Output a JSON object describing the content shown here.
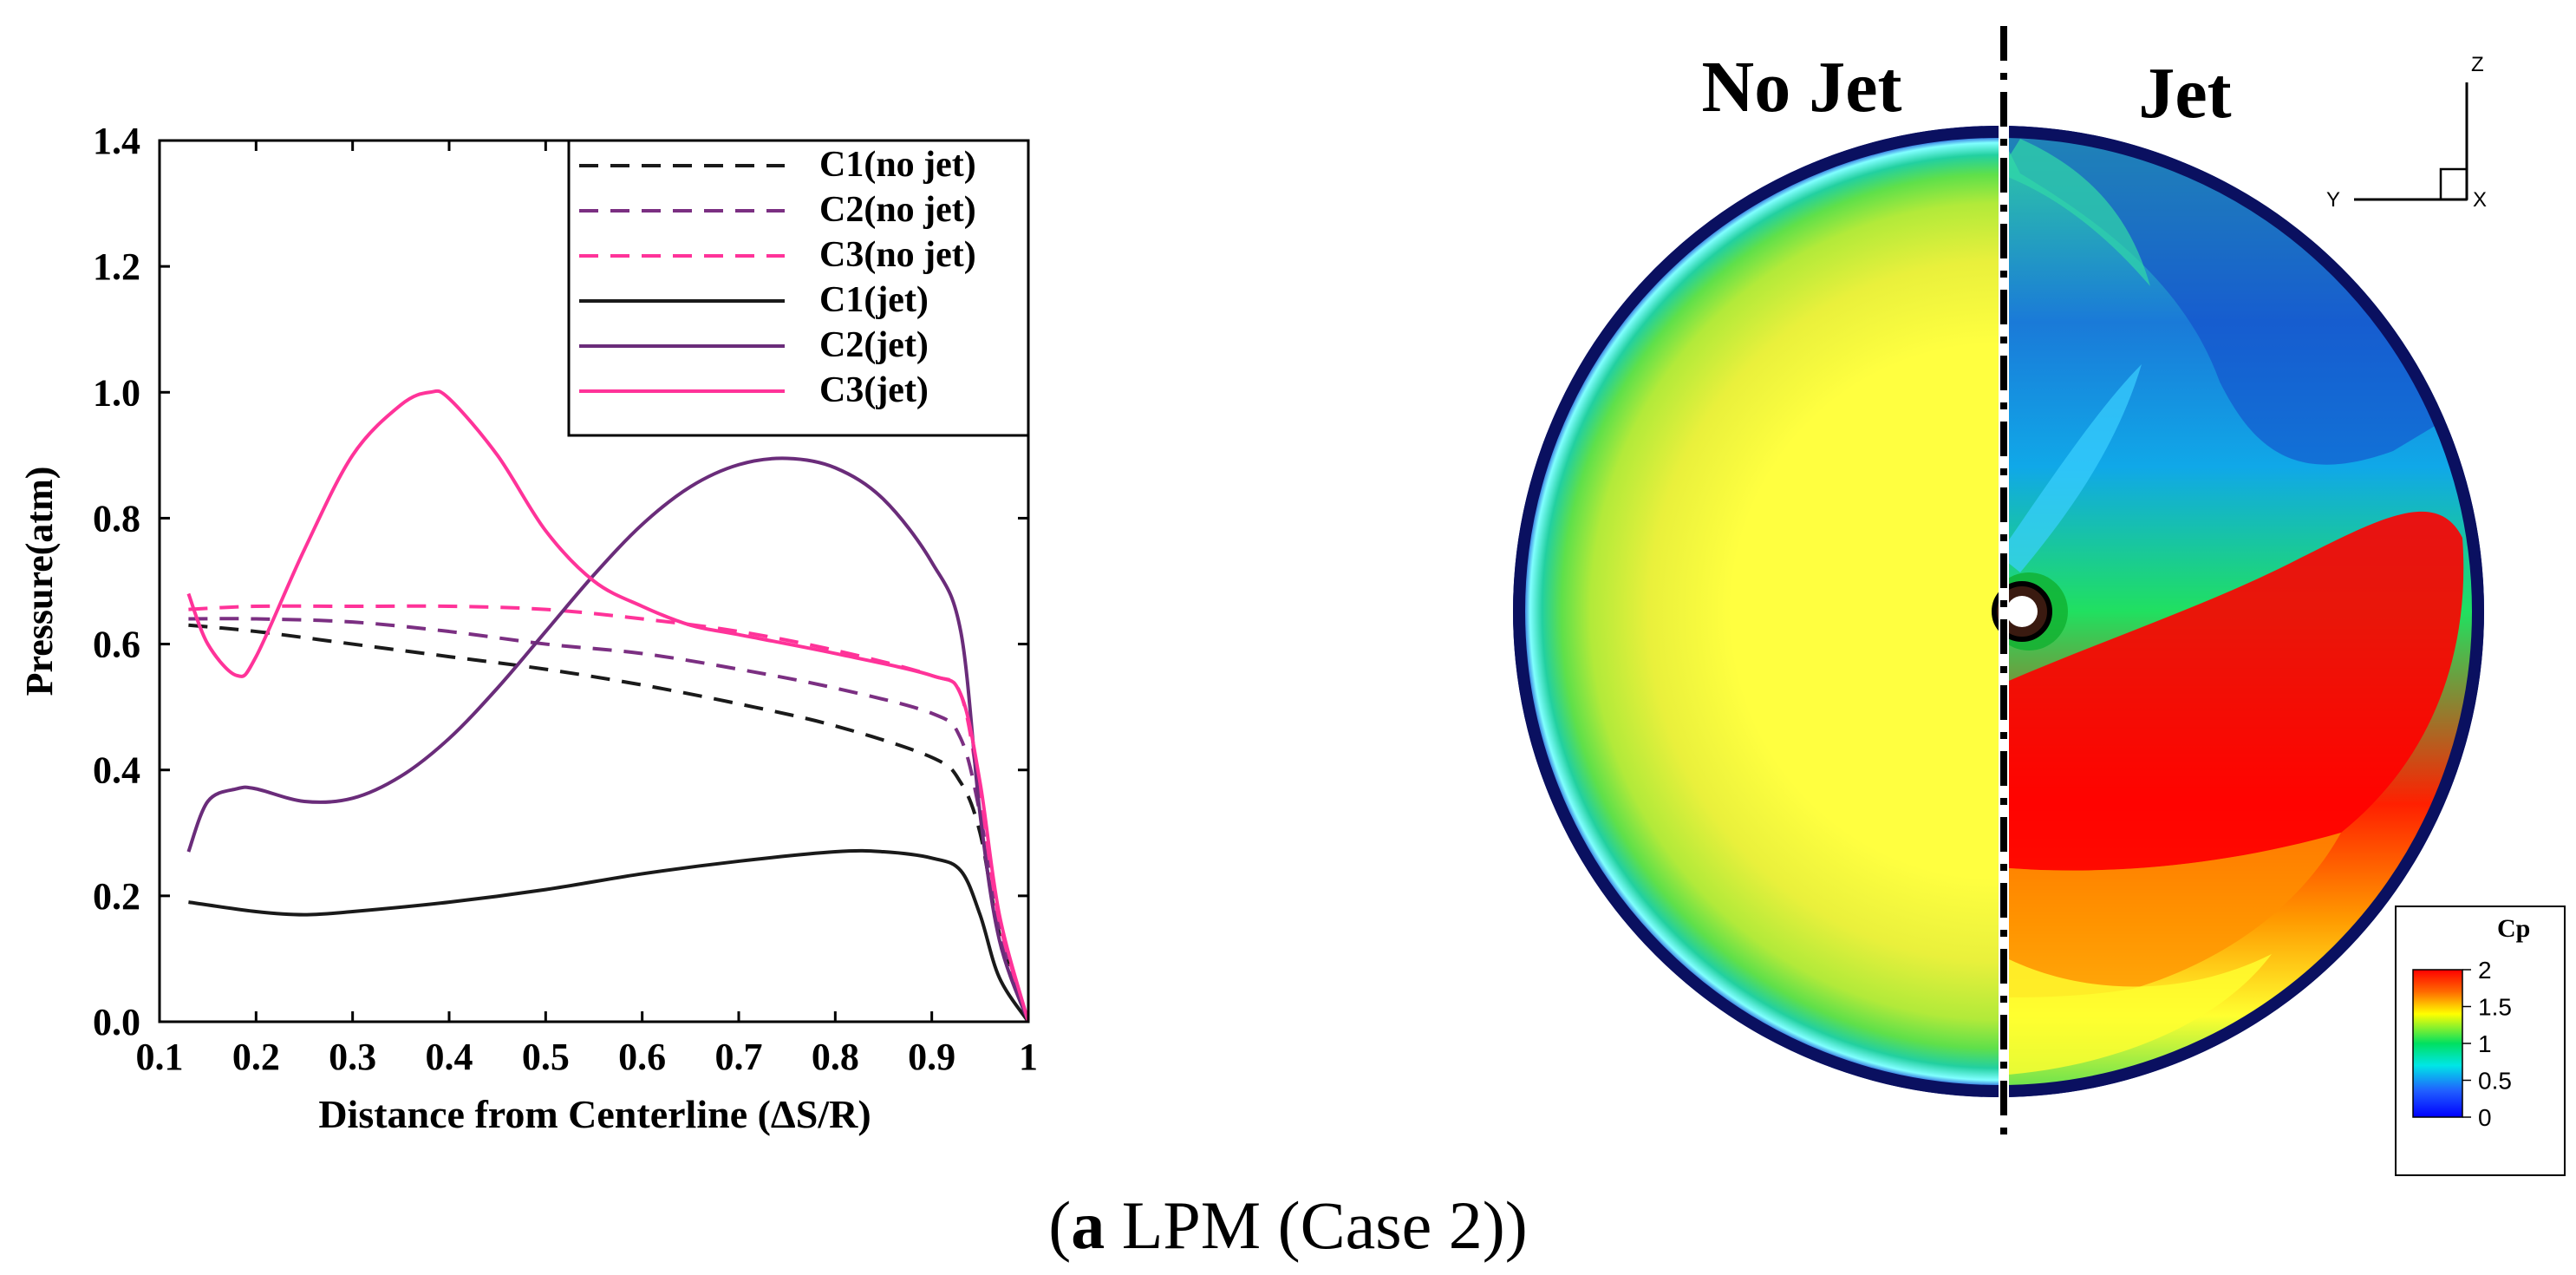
{
  "chart_data": [
    {
      "type": "line",
      "title": "",
      "xlabel": "Distance from Centerline (ΔS/R)",
      "ylabel": "Pressure(atm)",
      "xlim": [
        0.1,
        1.0
      ],
      "ylim": [
        0.0,
        1.4
      ],
      "xticks": [
        0.1,
        0.2,
        0.3,
        0.4,
        0.5,
        0.6,
        0.7,
        0.8,
        0.9,
        1.0
      ],
      "xtick_labels": [
        "0.1",
        "0.2",
        "0.3",
        "0.4",
        "0.5",
        "0.6",
        "0.7",
        "0.8",
        "0.9",
        "1"
      ],
      "yticks": [
        0.0,
        0.2,
        0.4,
        0.6,
        0.8,
        1.0,
        1.2,
        1.4
      ],
      "ytick_labels": [
        "0.0",
        "0.2",
        "0.4",
        "0.6",
        "0.8",
        "1.0",
        "1.2",
        "1.4"
      ],
      "grid": false,
      "legend_position": "top-right",
      "series": [
        {
          "name": "C1(no jet)",
          "color": "#1a1a1a",
          "dash": "dashed",
          "x": [
            0.13,
            0.2,
            0.3,
            0.4,
            0.5,
            0.6,
            0.7,
            0.8,
            0.9,
            0.93,
            0.95,
            0.97,
            1.0
          ],
          "y": [
            0.63,
            0.62,
            0.6,
            0.58,
            0.56,
            0.535,
            0.505,
            0.47,
            0.42,
            0.38,
            0.3,
            0.14,
            0.0
          ]
        },
        {
          "name": "C2(no jet)",
          "color": "#7b2f82",
          "dash": "dashed",
          "x": [
            0.13,
            0.2,
            0.3,
            0.4,
            0.5,
            0.6,
            0.7,
            0.8,
            0.9,
            0.93,
            0.95,
            0.97,
            1.0
          ],
          "y": [
            0.64,
            0.64,
            0.635,
            0.62,
            0.6,
            0.585,
            0.56,
            0.53,
            0.49,
            0.45,
            0.33,
            0.15,
            0.0
          ]
        },
        {
          "name": "C3(no jet)",
          "color": "#ff3399",
          "dash": "dashed",
          "x": [
            0.13,
            0.2,
            0.3,
            0.4,
            0.5,
            0.6,
            0.7,
            0.8,
            0.9,
            0.93,
            0.95,
            0.97,
            1.0
          ],
          "y": [
            0.655,
            0.66,
            0.66,
            0.66,
            0.655,
            0.64,
            0.62,
            0.59,
            0.55,
            0.52,
            0.36,
            0.16,
            0.0
          ]
        },
        {
          "name": "C1(jet)",
          "color": "#1a1a1a",
          "dash": "solid",
          "x": [
            0.13,
            0.2,
            0.25,
            0.3,
            0.4,
            0.5,
            0.6,
            0.7,
            0.8,
            0.85,
            0.9,
            0.93,
            0.95,
            0.97,
            1.0
          ],
          "y": [
            0.19,
            0.175,
            0.17,
            0.175,
            0.19,
            0.21,
            0.235,
            0.255,
            0.27,
            0.27,
            0.26,
            0.24,
            0.17,
            0.07,
            0.0
          ]
        },
        {
          "name": "C2(jet)",
          "color": "#6a2c7a",
          "dash": "solid",
          "x": [
            0.13,
            0.15,
            0.18,
            0.2,
            0.25,
            0.3,
            0.35,
            0.4,
            0.45,
            0.5,
            0.55,
            0.6,
            0.65,
            0.7,
            0.75,
            0.8,
            0.85,
            0.9,
            0.93,
            0.95,
            0.97,
            1.0
          ],
          "y": [
            0.27,
            0.35,
            0.37,
            0.37,
            0.35,
            0.355,
            0.39,
            0.45,
            0.53,
            0.62,
            0.71,
            0.79,
            0.85,
            0.885,
            0.895,
            0.88,
            0.83,
            0.73,
            0.62,
            0.33,
            0.13,
            0.0
          ]
        },
        {
          "name": "C3(jet)",
          "color": "#ff3399",
          "dash": "solid",
          "x": [
            0.13,
            0.15,
            0.18,
            0.2,
            0.25,
            0.3,
            0.35,
            0.38,
            0.4,
            0.45,
            0.5,
            0.55,
            0.6,
            0.65,
            0.7,
            0.8,
            0.9,
            0.93,
            0.95,
            0.97,
            1.0
          ],
          "y": [
            0.68,
            0.6,
            0.55,
            0.58,
            0.75,
            0.9,
            0.98,
            1.0,
            0.99,
            0.9,
            0.78,
            0.7,
            0.66,
            0.63,
            0.615,
            0.585,
            0.55,
            0.52,
            0.38,
            0.17,
            0.0
          ]
        }
      ]
    },
    {
      "type": "heatmap",
      "title": "Cp",
      "colorbar_label": "Cp",
      "colorbar_ticks": [
        "2",
        "1.5",
        "1",
        "0.5",
        "0"
      ],
      "colorbar_range": [
        0,
        2
      ],
      "left_label": "No Jet",
      "right_label": "Jet",
      "axes_labels": {
        "z": "Z",
        "y": "Y",
        "x": "X"
      }
    }
  ],
  "caption": {
    "letter": "a",
    "text": " LPM (Case 2)"
  },
  "colors": {
    "jet_red": "#ff0000",
    "jet_yellow": "#ffff3c",
    "jet_green": "#00dd55",
    "jet_blue": "#0033cc"
  }
}
